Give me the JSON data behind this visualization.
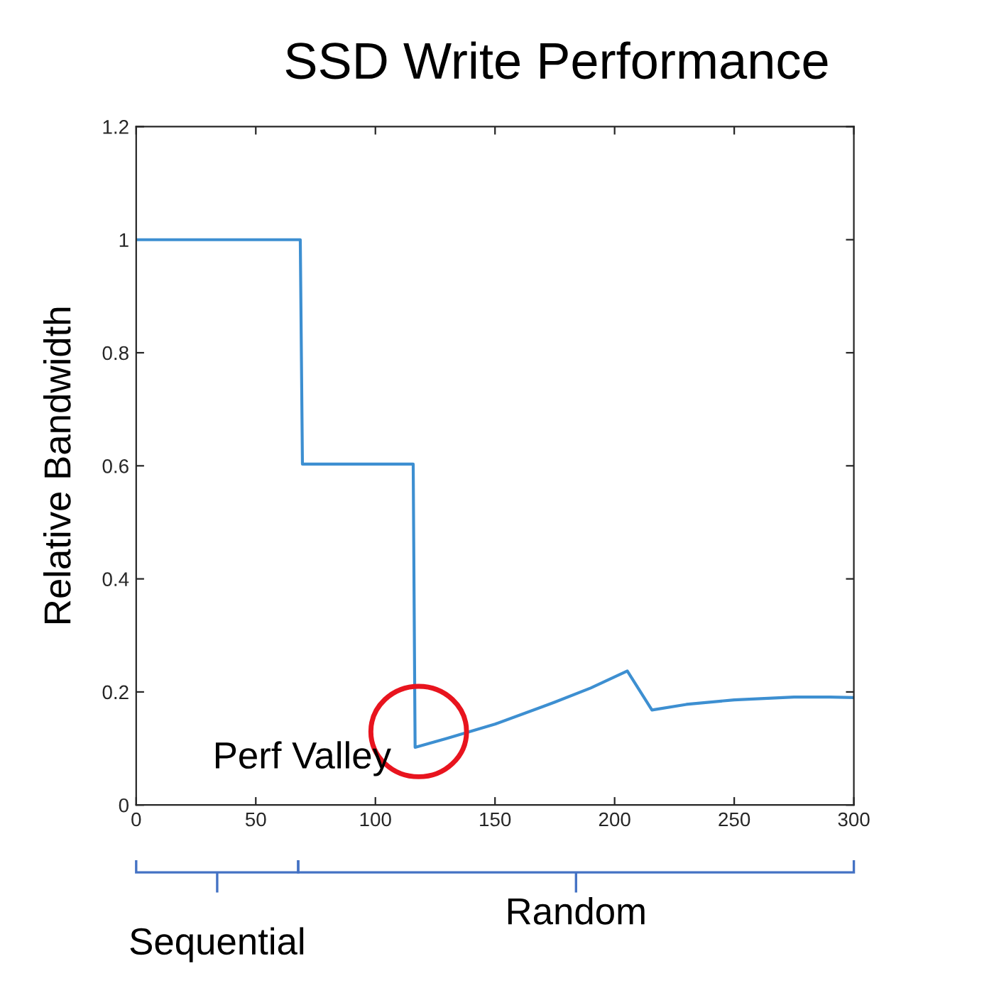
{
  "chart_data": {
    "type": "line",
    "title": "SSD Write Performance",
    "ylabel": "Relative Bandwidth",
    "series": [
      {
        "color": "#3d8fd1",
        "x": [
          0,
          68.6,
          69.5,
          115.8,
          116.6,
          130,
          150,
          175,
          190,
          205.3,
          215.6,
          230,
          250,
          275,
          290,
          300
        ],
        "values": [
          1,
          1,
          0.603,
          0.603,
          0.102,
          0.118,
          0.143,
          0.182,
          0.207,
          0.237,
          0.168,
          0.178,
          0.186,
          0.191,
          0.191,
          0.19
        ]
      }
    ],
    "xlim": [
      0,
      300
    ],
    "xticks": [
      0,
      50,
      100,
      150,
      200,
      250,
      300
    ],
    "ylim": [
      0,
      1.2
    ],
    "yticks": [
      0,
      0.2,
      0.4,
      0.6,
      0.8,
      1,
      1.2
    ],
    "annotations": [
      {
        "text": "Perf Valley",
        "x": 116.6,
        "y": 0.102
      },
      "Sequential",
      "Random"
    ],
    "grid": false,
    "legend": false,
    "marker": "none",
    "line_style": "solid"
  }
}
